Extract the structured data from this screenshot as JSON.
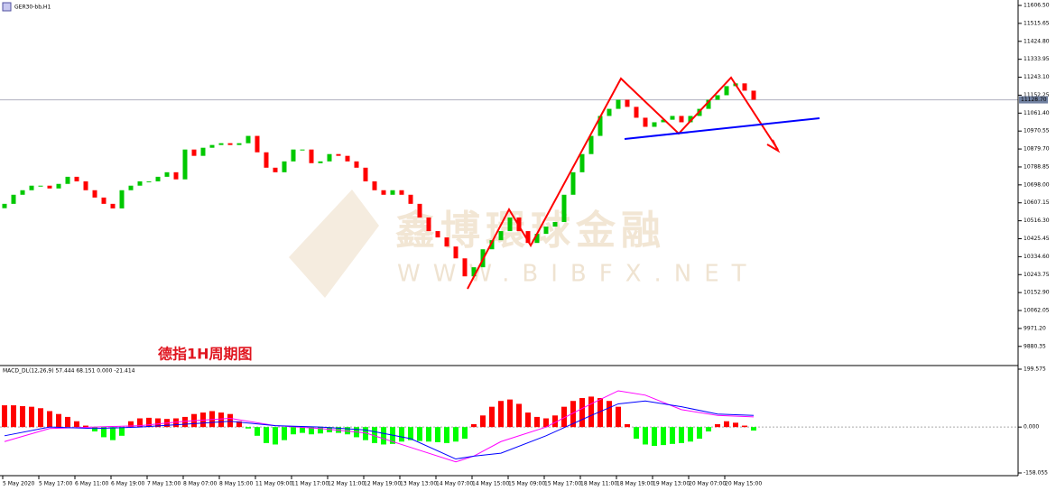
{
  "chart_data": {
    "type": "candlestick",
    "title": "GER30-bb,H1",
    "caption": "德指1H周期图",
    "watermark": "鑫博環球金融",
    "watermark_url": "WWW.BIBFX.NET",
    "up_color": "#00c800",
    "down_color": "#ff0000",
    "ylim": [
      9788,
      11634
    ],
    "yticks": [
      {
        "value": 11606.5,
        "label": "11606.50"
      },
      {
        "value": 11515.65,
        "label": "11515.65"
      },
      {
        "value": 11424.8,
        "label": "11424.80"
      },
      {
        "value": 11333.95,
        "label": "11333.95"
      },
      {
        "value": 11243.1,
        "label": "11243.10"
      },
      {
        "value": 11152.25,
        "label": "11152.25"
      },
      {
        "value": 11061.4,
        "label": "11061.40"
      },
      {
        "value": 10970.55,
        "label": "10970.55"
      },
      {
        "value": 10879.7,
        "label": "10879.70"
      },
      {
        "value": 10788.85,
        "label": "10788.85"
      },
      {
        "value": 10698,
        "label": "10698.00"
      },
      {
        "value": 10607.15,
        "label": "10607.15"
      },
      {
        "value": 10516.3,
        "label": "10516.30"
      },
      {
        "value": 10425.45,
        "label": "10425.45"
      },
      {
        "value": 10334.6,
        "label": "10334.60"
      },
      {
        "value": 10243.75,
        "label": "10243.75"
      },
      {
        "value": 10152.9,
        "label": "10152.90"
      },
      {
        "value": 10062.05,
        "label": "10062.05"
      },
      {
        "value": 9971.2,
        "label": "9971.20"
      },
      {
        "value": 9880.35,
        "label": "9880.35"
      }
    ],
    "current_price": {
      "value": 11128.7,
      "label": "11128.70"
    },
    "first_open": 10580,
    "close": [
      10602,
      10648,
      10671,
      10694,
      10694,
      10680,
      10703,
      10739,
      10716,
      10671,
      10634,
      10602,
      10579,
      10671,
      10694,
      10716,
      10716,
      10739,
      10762,
      10726,
      10877,
      10845,
      10886,
      10900,
      10909,
      10900,
      10909,
      10946,
      10863,
      10785,
      10762,
      10817,
      10877,
      10877,
      10808,
      10817,
      10854,
      10845,
      10817,
      10785,
      10716,
      10671,
      10648,
      10671,
      10648,
      10602,
      10533,
      10464,
      10432,
      10386,
      10326,
      10235,
      10281,
      10372,
      10418,
      10464,
      10533,
      10464,
      10404,
      10450,
      10487,
      10510,
      10648,
      10762,
      10854,
      10946,
      11047,
      11083,
      11129,
      11093,
      11038,
      10992,
      11015,
      11028,
      11047,
      11015,
      11047,
      11083,
      11129,
      11152,
      11198,
      11212,
      11175,
      11129
    ],
    "xticks": [
      {
        "value": 0,
        "label": "5 May 2020"
      },
      {
        "value": 4,
        "label": "5 May 17:00"
      },
      {
        "value": 8,
        "label": "6 May 11:00"
      },
      {
        "value": 12,
        "label": "6 May 19:00"
      },
      {
        "value": 16,
        "label": "7 May 13:00"
      },
      {
        "value": 20,
        "label": "8 May 07:00"
      },
      {
        "value": 24,
        "label": "8 May 15:00"
      },
      {
        "value": 28,
        "label": "11 May 09:00"
      },
      {
        "value": 32,
        "label": "11 May 17:00"
      },
      {
        "value": 36,
        "label": "12 May 11:00"
      },
      {
        "value": 40,
        "label": "12 May 19:00"
      },
      {
        "value": 44,
        "label": "13 May 13:00"
      },
      {
        "value": 48,
        "label": "14 May 07:00"
      },
      {
        "value": 52,
        "label": "14 May 15:00"
      },
      {
        "value": 56,
        "label": "15 May 09:00"
      },
      {
        "value": 60,
        "label": "15 May 17:00"
      },
      {
        "value": 64,
        "label": "18 May 11:00"
      },
      {
        "value": 68,
        "label": "18 May 19:00"
      },
      {
        "value": 72,
        "label": "19 May 13:00"
      },
      {
        "value": 76,
        "label": "20 May 07:00"
      },
      {
        "value": 80,
        "label": "20 May 15:00"
      }
    ],
    "macd": {
      "label": "MACD_DL(12,26,9) 57.444 68.151 0.000 -21.414",
      "y2lim": [
        -167.4,
        208.9
      ],
      "y2ticks": [
        {
          "value": 199.575,
          "label": "199.575"
        },
        {
          "value": 0,
          "label": "0.000"
        },
        {
          "value": -158.055,
          "label": "-158.055"
        }
      ],
      "hist_up_color": "#ff0000",
      "hist_down_color": "#00ff00",
      "histogram": [
        75,
        75,
        72,
        70,
        65,
        55,
        45,
        35,
        20,
        5,
        -15,
        -35,
        -45,
        -30,
        20,
        30,
        32,
        30,
        28,
        30,
        35,
        45,
        50,
        55,
        50,
        45,
        20,
        -5,
        -30,
        -55,
        -60,
        -45,
        -25,
        -20,
        -25,
        -22,
        -18,
        -20,
        -25,
        -35,
        -45,
        -55,
        -60,
        -58,
        -50,
        -45,
        -48,
        -50,
        -52,
        -55,
        -50,
        -40,
        10,
        40,
        70,
        90,
        95,
        80,
        50,
        35,
        30,
        40,
        70,
        90,
        100,
        105,
        100,
        90,
        70,
        10,
        -40,
        -60,
        -65,
        -62,
        -58,
        -55,
        -50,
        -40,
        -15,
        10,
        20,
        15,
        5,
        -12
      ],
      "x": [
        0,
        5,
        10,
        15,
        20,
        25,
        30,
        35,
        40,
        45,
        50,
        52,
        55,
        60,
        65,
        68,
        71,
        75,
        79,
        83
      ],
      "series": [
        {
          "color": "#ff00ff",
          "values": [
            -50,
            -5,
            0,
            5,
            20,
            30,
            5,
            -5,
            -20,
            -70,
            -120,
            -100,
            -50,
            0,
            80,
            125,
            110,
            60,
            40,
            35
          ]
        },
        {
          "color": "#0000ff",
          "values": [
            -30,
            0,
            -5,
            0,
            10,
            20,
            5,
            0,
            -10,
            -40,
            -110,
            -100,
            -90,
            -30,
            40,
            80,
            90,
            70,
            45,
            40
          ]
        }
      ]
    }
  }
}
